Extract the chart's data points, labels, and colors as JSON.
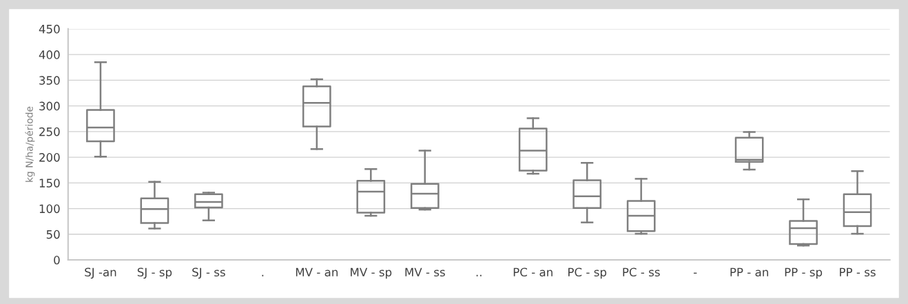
{
  "chart_data": {
    "type": "box",
    "ylabel": "kg N/ha/période",
    "categories": [
      "SJ -an",
      "SJ - sp",
      "SJ - ss",
      ".",
      "MV - an",
      "MV - sp",
      "MV - ss",
      "..",
      "PC - an",
      "PC - sp",
      "PC - ss",
      "-",
      "PP - an",
      "PP - sp",
      "PP - ss"
    ],
    "boxes": [
      {
        "low": 201,
        "q1": 231,
        "median": 258,
        "q3": 292,
        "high": 385
      },
      {
        "low": 61,
        "q1": 72,
        "median": 99,
        "q3": 120,
        "high": 152
      },
      {
        "low": 77,
        "q1": 102,
        "median": 113,
        "q3": 128,
        "high": 131
      },
      null,
      {
        "low": 216,
        "q1": 260,
        "median": 306,
        "q3": 338,
        "high": 352
      },
      {
        "low": 86,
        "q1": 92,
        "median": 133,
        "q3": 154,
        "high": 177
      },
      {
        "low": 98,
        "q1": 101,
        "median": 129,
        "q3": 148,
        "high": 213
      },
      null,
      {
        "low": 168,
        "q1": 174,
        "median": 213,
        "q3": 256,
        "high": 276
      },
      {
        "low": 73,
        "q1": 101,
        "median": 124,
        "q3": 155,
        "high": 189
      },
      {
        "low": 51,
        "q1": 56,
        "median": 86,
        "q3": 115,
        "high": 158
      },
      null,
      {
        "low": 176,
        "q1": 191,
        "median": 195,
        "q3": 238,
        "high": 249
      },
      {
        "low": 28,
        "q1": 31,
        "median": 62,
        "q3": 76,
        "high": 118
      },
      {
        "low": 51,
        "q1": 66,
        "median": 93,
        "q3": 128,
        "high": 173
      }
    ],
    "color": "#7f7f7f",
    "ylim": [
      0,
      450
    ],
    "yticks": [
      0,
      50,
      100,
      150,
      200,
      250,
      300,
      350,
      400,
      450
    ],
    "grid": "y"
  }
}
